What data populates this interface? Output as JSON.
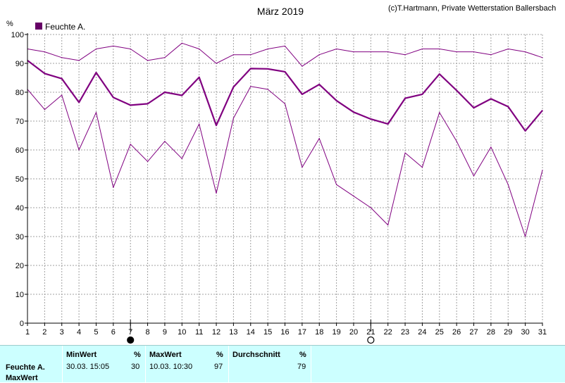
{
  "header": {
    "title": "März 2019",
    "copyright": "(c)T.Hartmann, Private Wetterstation Ballersbach"
  },
  "legend": {
    "label": "Feuchte A."
  },
  "colors": {
    "series": "#800080",
    "legend_swatch": "#660066",
    "grid": "#a0a0a0",
    "panel_bg": "#ccffff"
  },
  "chart_data": {
    "type": "line",
    "title": "März 2019",
    "ylabel": "%",
    "xlabel": "",
    "ylim": [
      0,
      100
    ],
    "yticks": [
      0,
      10,
      20,
      30,
      40,
      50,
      60,
      70,
      80,
      90,
      100
    ],
    "x": [
      1,
      2,
      3,
      4,
      5,
      6,
      7,
      8,
      9,
      10,
      11,
      12,
      13,
      14,
      15,
      16,
      17,
      18,
      19,
      20,
      21,
      22,
      23,
      24,
      25,
      26,
      27,
      28,
      29,
      30,
      31
    ],
    "legend_position": "top-left",
    "grid": true,
    "moon_phases": [
      {
        "day": 7,
        "phase": "new-moon"
      },
      {
        "day": 21,
        "phase": "full-moon"
      }
    ],
    "series": [
      {
        "name": "Feuchte A.",
        "role": "max",
        "values": [
          95,
          94,
          92,
          91,
          95,
          96,
          95,
          91,
          92,
          97,
          95,
          90,
          93,
          93,
          95,
          96,
          89,
          93,
          95,
          94,
          94,
          94,
          93,
          95,
          95,
          94,
          94,
          93,
          95,
          94,
          92
        ]
      },
      {
        "name": "Feuchte A.",
        "role": "avg",
        "values": [
          91,
          86.5,
          84.7,
          76.5,
          86.8,
          78.2,
          75.5,
          76,
          80,
          78.9,
          85.2,
          68.5,
          81.8,
          88.2,
          88.1,
          87.1,
          79.3,
          82.7,
          77.1,
          73.1,
          70.7,
          69,
          77.9,
          79.3,
          86.3,
          80.6,
          74.6,
          77.7,
          75.0,
          66.6,
          73.7
        ]
      },
      {
        "name": "Feuchte A.",
        "role": "min",
        "values": [
          81,
          74,
          79,
          60,
          73,
          47,
          62,
          56,
          63,
          57,
          69,
          45,
          71,
          82,
          81,
          76,
          54,
          64,
          48,
          44,
          40,
          34,
          59,
          54,
          73,
          63,
          51,
          61,
          48,
          30,
          53
        ]
      }
    ]
  },
  "stats": {
    "headers": {
      "min": "MinWert",
      "min_unit": "%",
      "max": "MaxWert",
      "max_unit": "%",
      "avg": "Durchschnitt",
      "avg_unit": "%"
    },
    "row_label": "Feuchte A.",
    "min_time": "30.03.  15:05",
    "min_value": "30",
    "max_time": "10.03.  10:30",
    "max_value": "97",
    "avg_value": "79",
    "footer_label": "MaxWert"
  }
}
